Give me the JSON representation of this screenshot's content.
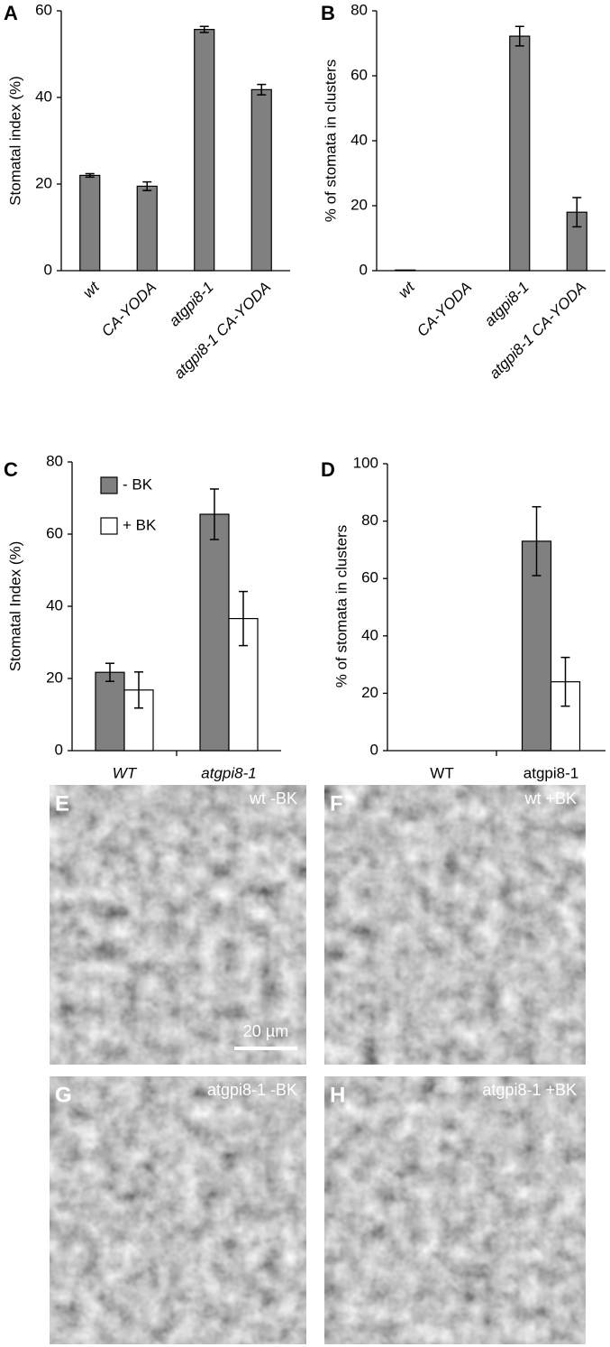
{
  "chart_data": [
    {
      "type": "bar",
      "panel": "A",
      "ylabel": "Stomatal index (%)",
      "categories": [
        "wt",
        "CA-YODA",
        "atgpi8-1",
        "atgpi8-1 CA-YODA"
      ],
      "values": [
        22,
        19.5,
        55.7,
        41.8
      ],
      "errors": [
        0.4,
        1,
        0.7,
        1.2
      ],
      "color": "#808080",
      "ylim": [
        0,
        60
      ],
      "yticks": [
        0,
        20,
        40,
        60
      ]
    },
    {
      "type": "bar",
      "panel": "B",
      "ylabel": "% of stomata in clusters",
      "categories": [
        "wt",
        "CA-YODA",
        "atgpi8-1",
        "atgpi8-1 CA-YODA"
      ],
      "values": [
        0.2,
        0,
        72.2,
        18
      ],
      "errors": [
        0,
        0,
        3,
        4.5
      ],
      "color": "#808080",
      "ylim": [
        0,
        80
      ],
      "yticks": [
        0,
        20,
        40,
        60,
        80
      ]
    },
    {
      "type": "bar",
      "panel": "C",
      "ylabel": "Stomatal Index (%)",
      "categories": [
        "WT",
        "atgpi8-1"
      ],
      "series": [
        {
          "name": "- BK",
          "color": "#808080",
          "values": [
            21.7,
            65.5
          ],
          "errors": [
            2.5,
            7
          ]
        },
        {
          "name": "+ BK",
          "color": "#ffffff",
          "values": [
            16.8,
            36.6
          ],
          "errors": [
            5,
            7.5
          ]
        }
      ],
      "ylim": [
        0,
        80
      ],
      "yticks": [
        0,
        20,
        40,
        60,
        80
      ],
      "legend": "top-left"
    },
    {
      "type": "bar",
      "panel": "D",
      "ylabel": "% of stomata in clusters",
      "categories": [
        "WT",
        "atgpi8-1"
      ],
      "series": [
        {
          "color": "#808080",
          "values": [
            0,
            73
          ],
          "errors": [
            0,
            12
          ]
        },
        {
          "color": "#ffffff",
          "values": [
            0,
            24
          ],
          "errors": [
            0,
            8.5
          ]
        }
      ],
      "ylim": [
        0,
        100
      ],
      "yticks": [
        0,
        20,
        40,
        60,
        80,
        100
      ]
    }
  ],
  "images": [
    {
      "panel": "E",
      "label": "wt -BK",
      "scale_bar": "20 µm"
    },
    {
      "panel": "F",
      "label": "wt +BK"
    },
    {
      "panel": "G",
      "label": "atgpi8-1 -BK"
    },
    {
      "panel": "H",
      "label": "atgpi8-1 +BK"
    }
  ]
}
